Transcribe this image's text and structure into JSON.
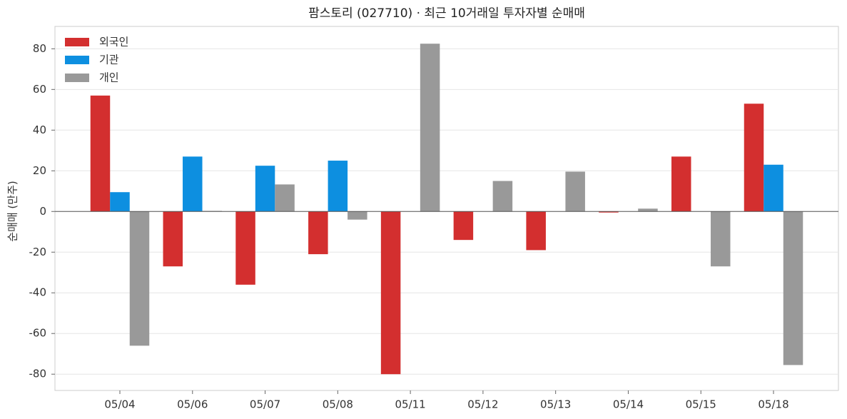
{
  "chart_data": {
    "type": "bar",
    "title": "팜스토리 (027710) · 최근 10거래일 투자자별 순매매",
    "ylabel": "순매매 (만주)",
    "categories": [
      "05/04",
      "05/06",
      "05/07",
      "05/08",
      "05/11",
      "05/12",
      "05/13",
      "05/14",
      "05/15",
      "05/18"
    ],
    "series": [
      {
        "name": "외국인",
        "color": "#d32f2f",
        "values": [
          57,
          -27,
          -36,
          -21,
          -80,
          -14,
          -19,
          -0.5,
          27,
          53
        ]
      },
      {
        "name": "기관",
        "color": "#0d8fe0",
        "values": [
          9.5,
          27,
          22.5,
          25,
          0,
          0,
          0,
          0,
          0,
          23
        ]
      },
      {
        "name": "개인",
        "color": "#999999",
        "values": [
          -66,
          0.3,
          13.3,
          -4,
          82.5,
          15,
          19.6,
          1.4,
          -27,
          -75.5
        ]
      }
    ],
    "ylim": [
      -88,
      91
    ],
    "yticks": [
      -80,
      -60,
      -40,
      -20,
      0,
      20,
      40,
      60,
      80
    ],
    "grid": true,
    "legend": "upper left"
  }
}
